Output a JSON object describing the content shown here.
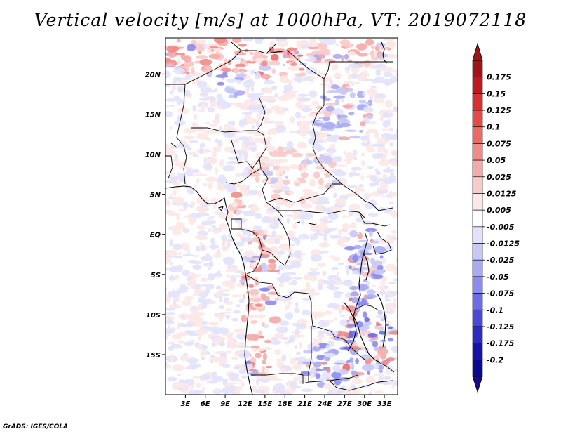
{
  "title": "Vertical velocity [m/s] at 1000hPa, VT: 2019072118",
  "credit": "GrADS: IGES/COLA",
  "map": {
    "lat_labels": [
      "20N",
      "15N",
      "10N",
      "5N",
      "EQ",
      "5S",
      "10S",
      "15S"
    ],
    "lat_values": [
      20,
      15,
      10,
      5,
      0,
      -5,
      -10,
      -15
    ],
    "lon_labels": [
      "3E",
      "6E",
      "9E",
      "12E",
      "15E",
      "18E",
      "21E",
      "24E",
      "27E",
      "30E",
      "33E"
    ],
    "lon_values": [
      3,
      6,
      9,
      12,
      15,
      18,
      21,
      24,
      27,
      30,
      33
    ],
    "lon_range": [
      0,
      35
    ],
    "lat_range": [
      -20,
      24.5
    ]
  },
  "colorbar": {
    "labels": [
      "0.175",
      "0.15",
      "0.125",
      "0.1",
      "0.075",
      "0.05",
      "0.025",
      "0.0125",
      "0.005",
      "-0.005",
      "-0.0125",
      "-0.025",
      "-0.05",
      "-0.075",
      "-0.1",
      "-0.125",
      "-0.175",
      "-0.2"
    ],
    "colors": [
      "#a01418",
      "#c0181c",
      "#d83030",
      "#e44a48",
      "#ec6a66",
      "#f08c88",
      "#f4aaa8",
      "#f8cac8",
      "#fce8e6",
      "#ffffff",
      "#e2e2fc",
      "#c8c8f8",
      "#aaaaf4",
      "#8c8cee",
      "#6c6ce6",
      "#4a4ad8",
      "#2c2cc4",
      "#1414a8",
      "#0a0a90"
    ]
  }
}
